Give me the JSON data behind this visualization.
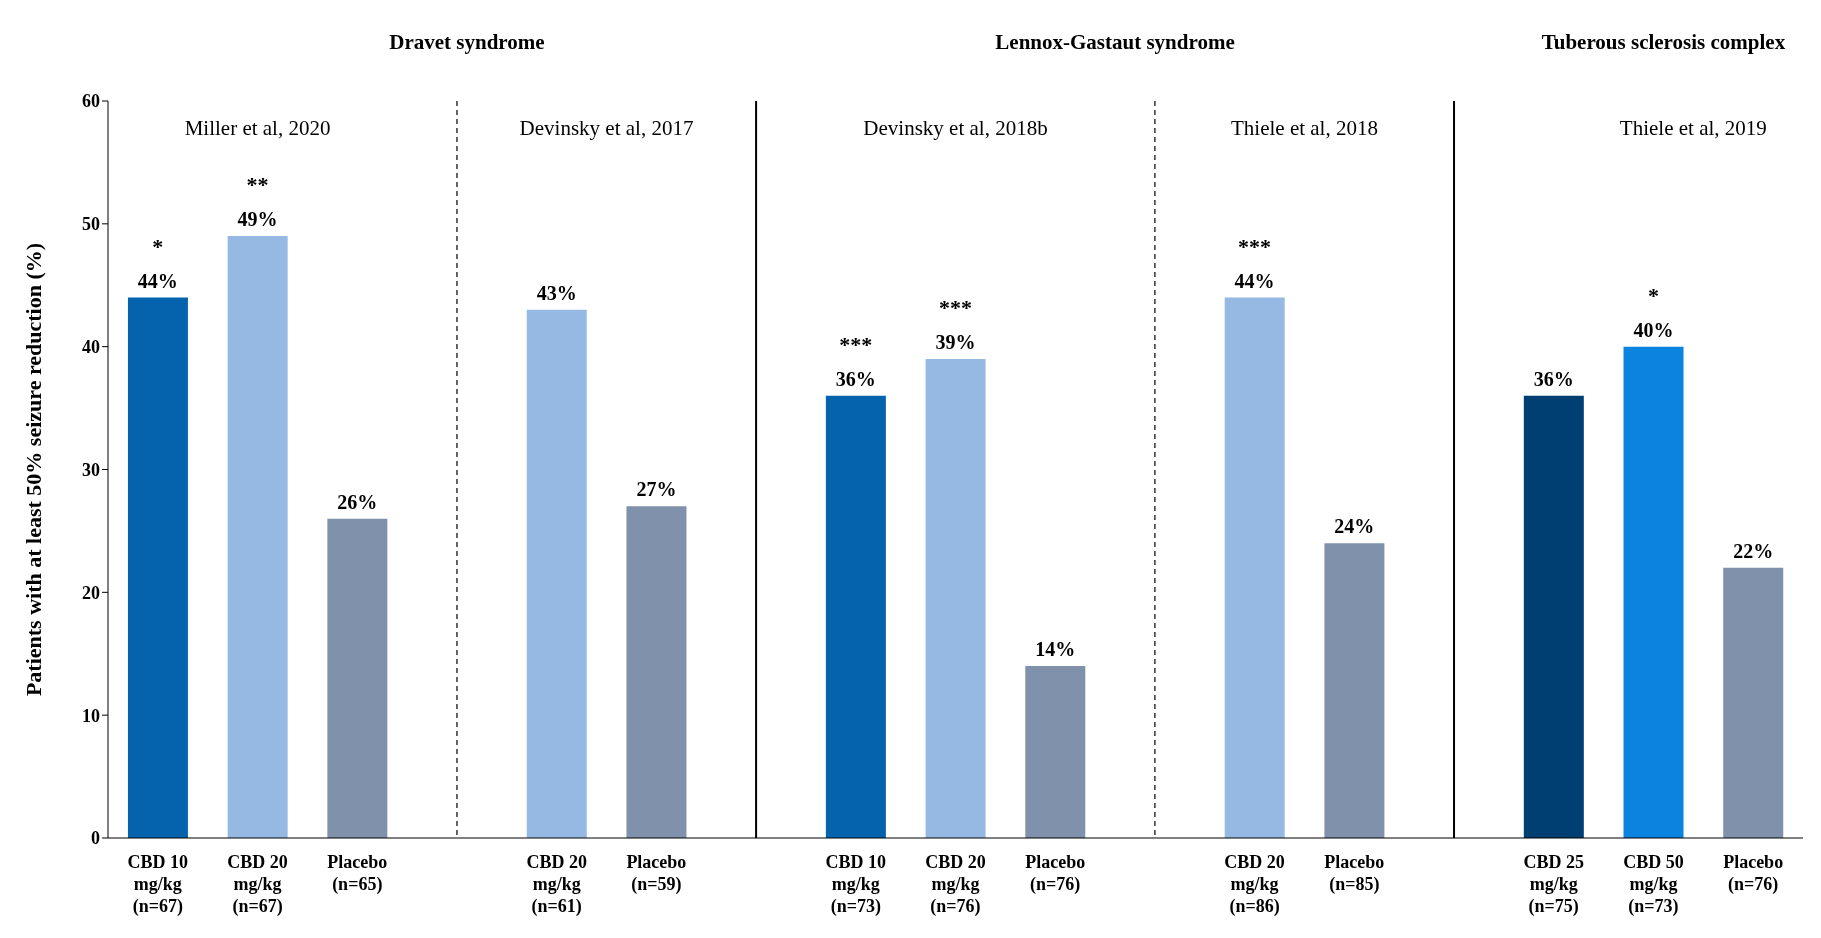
{
  "chart_data": {
    "type": "bar",
    "ylabel": "Patients with at least  50%  seizure reduction (%)",
    "categories": [
      "CBD 10 mg/kg (n=67)",
      "CBD 20 mg/kg (n=67)",
      "Placebo (n=65)",
      null,
      "CBD 20 mg/kg (n=61)",
      "Placebo (n=59)",
      null,
      "CBD 10 mg/kg (n=73)",
      "CBD 20 mg/kg (n=76)",
      "Placebo (n=76)",
      null,
      "CBD 20 mg/kg (n=86)",
      "Placebo (n=85)",
      null,
      "CBD 25 mg/kg (n=75)",
      "CBD 50 mg/kg (n=73)",
      "Placebo (n=76)"
    ],
    "values": [
      44,
      49,
      26,
      null,
      43,
      27,
      null,
      36,
      39,
      14,
      null,
      44,
      24,
      null,
      36,
      40,
      22
    ],
    "colors": [
      "#0563ae",
      "#95b9e3",
      "#7f91ab",
      null,
      "#95b9e3",
      "#7f91ab",
      null,
      "#0563ae",
      "#95b9e3",
      "#7f91ab",
      null,
      "#95b9e3",
      "#7f91ab",
      null,
      "#003f72",
      "#0a84df",
      "#7f91ab"
    ],
    "value_labels": [
      "44%",
      "49%",
      "26%",
      null,
      "43%",
      "27%",
      null,
      "36%",
      "39%",
      "14%",
      null,
      "44%",
      "24%",
      null,
      "36%",
      "40%",
      "22%"
    ],
    "ylim": [
      0,
      60
    ],
    "yticks": [
      0,
      10,
      20,
      30,
      40,
      50,
      60
    ],
    "grid": "x",
    "annotations": [
      "Dravet syndrome",
      "Lennox-Gastaut syndrome",
      "Tuberous sclerosis complex",
      "Miller et al, 2020",
      "Devinsky et al, 2017",
      "Devinsky et al, 2018b",
      "Thiele et al, 2018",
      "Thiele et al, 2019",
      {
        "text": "*",
        "x": "CBD 10 mg/kg (n=67)",
        "y": 44
      },
      {
        "text": "**",
        "x": "CBD 20 mg/kg (n=67)",
        "y": 49
      },
      {
        "text": "***",
        "x": "CBD 10 mg/kg (n=73)",
        "y": 36
      },
      {
        "text": "***",
        "x": "CBD 20 mg/kg (n=76)",
        "y": 39
      },
      {
        "text": "***",
        "x": "CBD 20 mg/kg (n=86)",
        "y": 44
      },
      {
        "text": "*",
        "x": "CBD 50 mg/kg (n=73)",
        "y": 40
      }
    ]
  }
}
